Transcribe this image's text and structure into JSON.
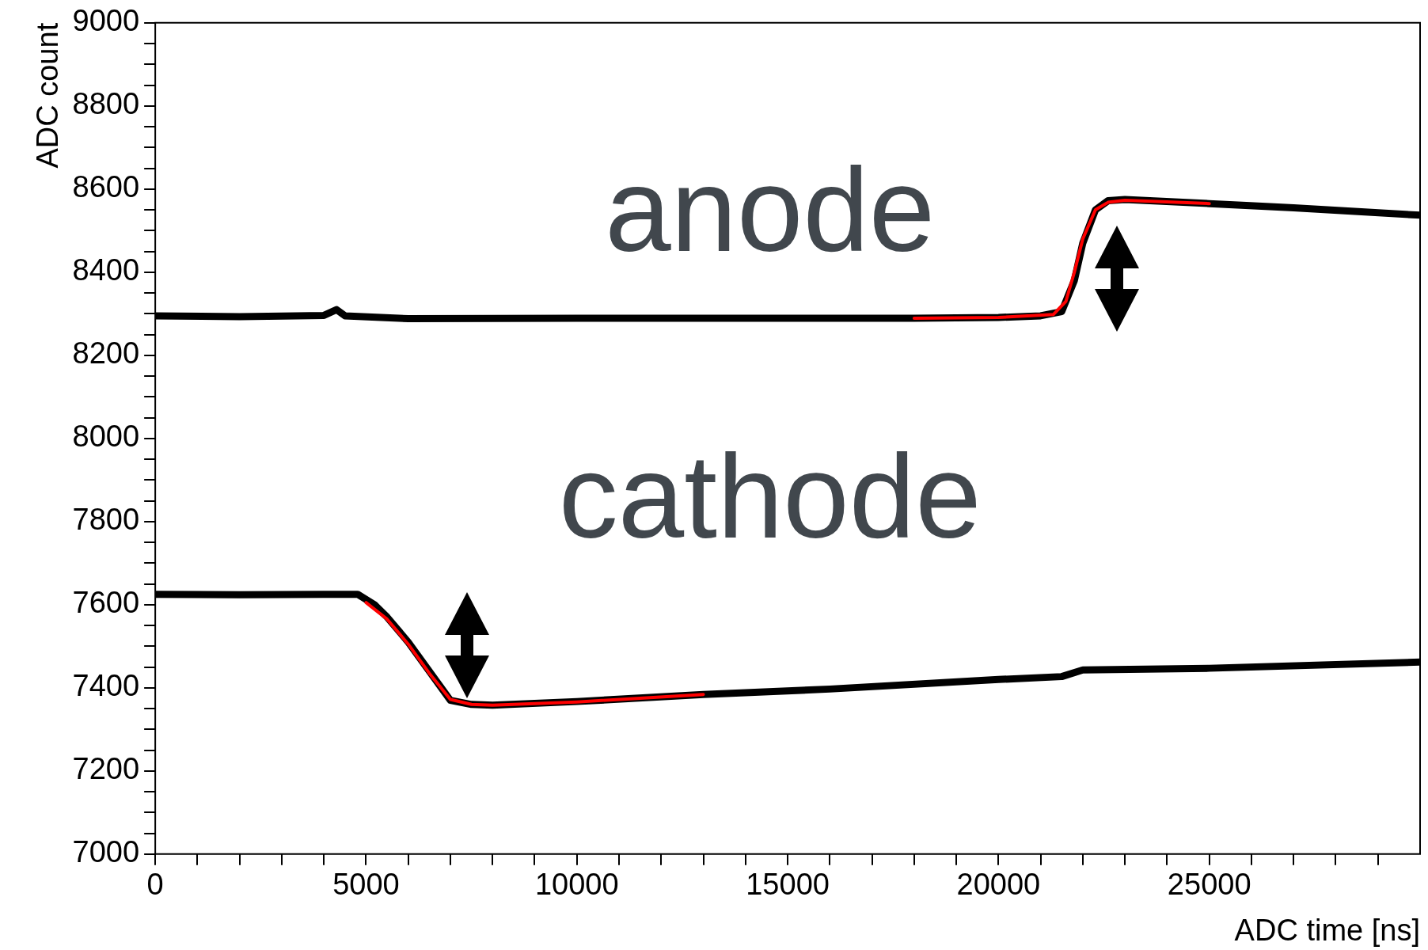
{
  "chart_data": {
    "type": "line",
    "xlabel": "ADC time [ns]",
    "ylabel": "ADC count",
    "xlim": [
      0,
      30000
    ],
    "ylim": [
      7000,
      9000
    ],
    "xticks": [
      0,
      {
        "value": 1000,
        "label": null
      },
      {
        "value": 2000,
        "label": null
      },
      {
        "value": 3000,
        "label": null
      },
      {
        "value": 4000,
        "label": null
      },
      5000,
      {
        "value": 6000,
        "label": null
      },
      {
        "value": 7000,
        "label": null
      },
      {
        "value": 8000,
        "label": null
      },
      {
        "value": 9000,
        "label": null
      },
      10000,
      {
        "value": 11000,
        "label": null
      },
      {
        "value": 12000,
        "label": null
      },
      {
        "value": 13000,
        "label": null
      },
      {
        "value": 14000,
        "label": null
      },
      15000,
      {
        "value": 16000,
        "label": null
      },
      {
        "value": 17000,
        "label": null
      },
      {
        "value": 18000,
        "label": null
      },
      {
        "value": 19000,
        "label": null
      },
      20000,
      {
        "value": 21000,
        "label": null
      },
      {
        "value": 22000,
        "label": null
      },
      {
        "value": 23000,
        "label": null
      },
      {
        "value": 24000,
        "label": null
      },
      25000,
      {
        "value": 26000,
        "label": null
      },
      {
        "value": 27000,
        "label": null
      },
      {
        "value": 28000,
        "label": null
      },
      {
        "value": 29000,
        "label": null
      }
    ],
    "yticks": [
      7000,
      {
        "value": 7050,
        "label": null
      },
      {
        "value": 7100,
        "label": null
      },
      {
        "value": 7150,
        "label": null
      },
      7200,
      {
        "value": 7250,
        "label": null
      },
      {
        "value": 7300,
        "label": null
      },
      {
        "value": 7350,
        "label": null
      },
      7400,
      {
        "value": 7450,
        "label": null
      },
      {
        "value": 7500,
        "label": null
      },
      {
        "value": 7550,
        "label": null
      },
      7600,
      {
        "value": 7650,
        "label": null
      },
      {
        "value": 7700,
        "label": null
      },
      {
        "value": 7750,
        "label": null
      },
      7800,
      {
        "value": 7850,
        "label": null
      },
      {
        "value": 7900,
        "label": null
      },
      {
        "value": 7950,
        "label": null
      },
      8000,
      {
        "value": 8050,
        "label": null
      },
      {
        "value": 8100,
        "label": null
      },
      {
        "value": 8150,
        "label": null
      },
      8200,
      {
        "value": 8250,
        "label": null
      },
      {
        "value": 8300,
        "label": null
      },
      {
        "value": 8350,
        "label": null
      },
      8400,
      {
        "value": 8450,
        "label": null
      },
      {
        "value": 8500,
        "label": null
      },
      {
        "value": 8550,
        "label": null
      },
      8600,
      {
        "value": 8650,
        "label": null
      },
      {
        "value": 8700,
        "label": null
      },
      {
        "value": 8750,
        "label": null
      },
      8800,
      {
        "value": 8850,
        "label": null
      },
      {
        "value": 8900,
        "label": null
      },
      {
        "value": 8950,
        "label": null
      },
      9000
    ],
    "grid": false,
    "legend": false,
    "marker": "none",
    "line_style": "solid",
    "series": [
      {
        "color": "#000000",
        "x": [
          0,
          2000,
          4000,
          4300,
          4500,
          6000,
          10000,
          15000,
          18000,
          20000,
          21000,
          21500,
          21800,
          22000,
          22300,
          22600,
          23000,
          25000,
          27000,
          30000
        ],
        "values": [
          8295,
          8293,
          8296,
          8310,
          8295,
          8288,
          8289,
          8289,
          8289,
          8291,
          8295,
          8305,
          8380,
          8470,
          8550,
          8572,
          8575,
          8565,
          8555,
          8537
        ]
      },
      {
        "color": "#000000",
        "x": [
          0,
          2000,
          4000,
          4800,
          5200,
          5500,
          6000,
          6500,
          7000,
          7500,
          8000,
          10000,
          13000,
          16000,
          20000,
          21500,
          22000,
          25000,
          30000
        ],
        "values": [
          7625,
          7624,
          7625,
          7625,
          7600,
          7570,
          7510,
          7440,
          7370,
          7360,
          7358,
          7367,
          7384,
          7397,
          7420,
          7427,
          7443,
          7447,
          7462
        ]
      },
      {
        "color": "#ff0000",
        "x": [
          18000,
          20000,
          21300,
          21600,
          21800,
          22000,
          22300,
          22600,
          23000,
          25000
        ],
        "values": [
          8289,
          8291,
          8298,
          8330,
          8400,
          8480,
          8550,
          8568,
          8573,
          8565
        ]
      },
      {
        "color": "#ff0000",
        "x": [
          5000,
          5500,
          6000,
          6500,
          7000,
          7500,
          8000,
          10000,
          13000
        ],
        "values": [
          7605,
          7565,
          7505,
          7435,
          7372,
          7360,
          7358,
          7366,
          7384
        ]
      }
    ],
    "annotations": [
      "anode",
      "cathode"
    ]
  }
}
